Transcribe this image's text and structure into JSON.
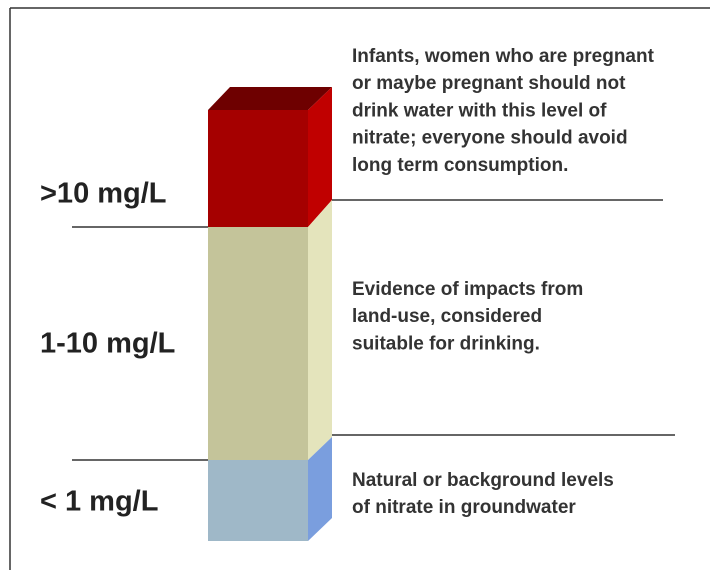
{
  "levels": [
    {
      "label": ">10 mg/L",
      "description": [
        "Infants, women who are pregnant",
        "or maybe pregnant should not",
        "drink water with this level of",
        "nitrate; everyone should avoid",
        "long term consumption."
      ]
    },
    {
      "label": "1-10 mg/L",
      "description": [
        "Evidence of impacts from",
        "land-use, considered",
        "suitable for drinking."
      ]
    },
    {
      "label": "< 1 mg/L",
      "description": [
        "Natural or background levels",
        "of nitrate in groundwater"
      ]
    }
  ]
}
